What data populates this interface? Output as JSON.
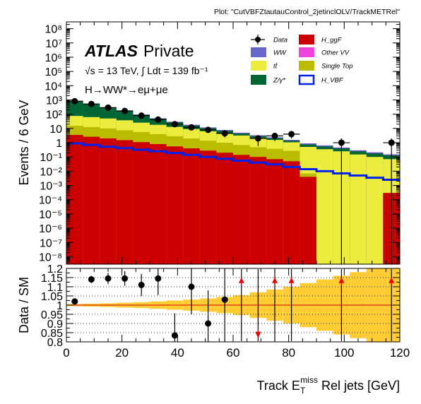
{
  "header": {
    "plot_label": "Plot: \"CutVBFZtautauControl_2jetinclOLV/TrackMETRel\""
  },
  "chart_data": [
    {
      "type": "bar",
      "panel": "main",
      "stacked": true,
      "ylabel": "Events / 6 GeV",
      "yscale": "log",
      "ylim": [
        3e-09,
        300000000.0
      ],
      "xlim": [
        0,
        120
      ],
      "bin_width": 6,
      "x_bins": [
        0,
        6,
        12,
        18,
        24,
        30,
        36,
        42,
        48,
        54,
        60,
        66,
        72,
        78,
        84,
        90,
        96,
        102,
        108,
        114
      ],
      "y_tick_labels": [
        "10",
        "1",
        "10⁻¹",
        "10⁻²",
        "10⁻³",
        "10⁻⁴",
        "10⁻⁵",
        "10⁻⁶",
        "10⁻⁷",
        "10⁻⁸"
      ],
      "y_tick_labels_high": [
        "10²",
        "10³",
        "10⁴",
        "10⁵",
        "10⁶",
        "10⁷",
        "10⁸"
      ],
      "experiment": "ATLAS",
      "status": "Private",
      "energy_text": "√s = 13 TeV, ∫ Ldt = 139 fb⁻¹",
      "channel_text": "H→WW*→eμ+μe",
      "legend_position": "top-right",
      "series": [
        {
          "name": "H_ggF",
          "color": "#cc0000",
          "values": [
            3.5,
            2.6,
            2.0,
            1.5,
            1.1,
            0.8,
            0.55,
            0.4,
            0.28,
            0.2,
            0.14,
            0.1,
            0.07,
            0.05,
            0.004,
            0.0,
            0.0,
            0.0,
            0.0,
            0.0003
          ]
        },
        {
          "name": "Single Top",
          "color": "#bbbb00",
          "values": [
            12,
            10,
            8,
            6,
            4.5,
            3.2,
            2.3,
            1.6,
            1.1,
            0.8,
            0.55,
            0.38,
            0.3,
            0.22,
            0.003,
            0.0,
            0.0,
            0.0,
            0.0,
            0.0
          ]
        },
        {
          "name": "tt̄",
          "color": "#ecec3f",
          "values": [
            60,
            50,
            40,
            30,
            20,
            14,
            10,
            7,
            5,
            3.5,
            2.5,
            1.7,
            1.2,
            0.8,
            0.5,
            0.35,
            0.25,
            0.15,
            0.1,
            0.07
          ]
        },
        {
          "name": "Z/γ*",
          "color": "#006633",
          "values": [
            700,
            420,
            230,
            130,
            65,
            30,
            14,
            7,
            4,
            2.3,
            1.2,
            0.7,
            0.5,
            0.3,
            0.25,
            0.2,
            0.15,
            0.1,
            0.08,
            0.06
          ]
        },
        {
          "name": "WW",
          "color": "#6666cc",
          "values": [
            12,
            10,
            8,
            6,
            4.5,
            3.4,
            2.5,
            1.8,
            1.3,
            0.9,
            0.6,
            0.4,
            0.28,
            0.18,
            0.12,
            0.08,
            0.05,
            0.035,
            0.025,
            0.018
          ]
        },
        {
          "name": "Other VV",
          "color": "#ee44dd",
          "values": [
            0.9,
            0.75,
            0.6,
            0.48,
            0.38,
            0.3,
            0.24,
            0.18,
            0.14,
            0.1,
            0.08,
            0.06,
            0.045,
            0.034,
            0.025,
            0.02,
            0.014,
            0.01,
            0.008,
            0.006
          ]
        }
      ],
      "signal_overlay": {
        "name": "H_VBF",
        "color": "#0022ee",
        "values": [
          0.9,
          0.7,
          0.52,
          0.42,
          0.32,
          0.25,
          0.19,
          0.14,
          0.1,
          0.075,
          0.055,
          0.04,
          0.03,
          0.02,
          0.014,
          0.01,
          0.007,
          0.005,
          0.0035,
          0.0025
        ]
      },
      "data_points": {
        "name": "Data",
        "x": [
          3,
          9,
          15,
          21,
          27,
          33,
          39,
          45,
          51,
          57,
          69,
          75,
          81,
          99,
          117
        ],
        "y": [
          820,
          520,
          290,
          170,
          80,
          42,
          20,
          12,
          8,
          4.5,
          2,
          3,
          4,
          1,
          1
        ]
      },
      "legend": {
        "left": [
          {
            "label": "Data",
            "kind": "marker",
            "color": "#000000"
          },
          {
            "label": "WW",
            "kind": "box",
            "color": "#6666cc"
          },
          {
            "label": "tt̄",
            "kind": "box",
            "color": "#ecec3f"
          },
          {
            "label": "Z/γ*",
            "kind": "box",
            "color": "#006633"
          }
        ],
        "right": [
          {
            "label": "H_ggF",
            "kind": "box",
            "color": "#cc0000"
          },
          {
            "label": "Other VV",
            "kind": "box",
            "color": "#ee44dd"
          },
          {
            "label": "Single Top",
            "kind": "box",
            "color": "#bbbb00"
          },
          {
            "label": "H_VBF",
            "kind": "line",
            "color": "#0022ee"
          }
        ]
      }
    },
    {
      "type": "scatter",
      "panel": "ratio",
      "ylabel": "Data / SM",
      "xlabel": "Track E_T^miss Rel jets [GeV]",
      "ylim": [
        0.8,
        1.2
      ],
      "xlim": [
        0,
        120
      ],
      "x_tick_labels": [
        "0",
        "20",
        "40",
        "60",
        "80",
        "100",
        "120"
      ],
      "y_tick_labels": [
        "1.2",
        "1.15",
        "1.1",
        "1.05",
        "1",
        "0.95",
        "0.9",
        "0.85",
        "0.8"
      ],
      "reference_line": 1.0,
      "uncertainty_band": {
        "color": "#ffcc33",
        "halfwidth": [
          0.006,
          0.008,
          0.01,
          0.013,
          0.016,
          0.02,
          0.025,
          0.03,
          0.036,
          0.044,
          0.054,
          0.07,
          0.085,
          0.1,
          0.12,
          0.14,
          0.16,
          0.18,
          0.2,
          0.22
        ]
      },
      "points": {
        "x": [
          3,
          9,
          15,
          21,
          27,
          33,
          39,
          45,
          51,
          57
        ],
        "y": [
          1.02,
          1.14,
          1.145,
          1.145,
          1.11,
          1.145,
          0.835,
          1.1,
          0.9,
          1.03
        ],
        "yerr": [
          0.01,
          0.02,
          0.03,
          0.04,
          0.06,
          0.09,
          0.12,
          0.15,
          0.18,
          0.23
        ]
      },
      "out_of_range": {
        "x": [
          63,
          69,
          75,
          81,
          99,
          117
        ],
        "direction": [
          "up",
          "down",
          "up",
          "up",
          "up",
          "up"
        ]
      }
    }
  ]
}
